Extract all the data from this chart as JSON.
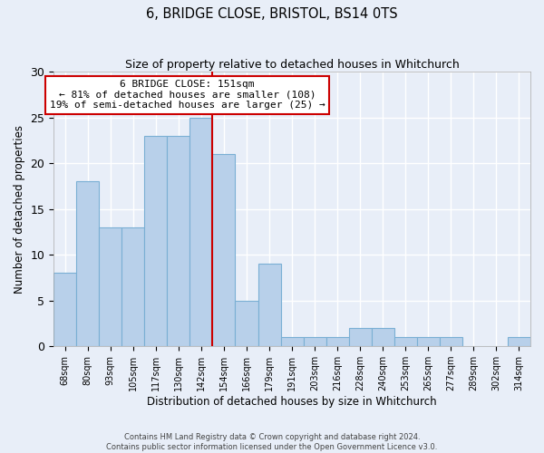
{
  "title": "6, BRIDGE CLOSE, BRISTOL, BS14 0TS",
  "subtitle": "Size of property relative to detached houses in Whitchurch",
  "xlabel": "Distribution of detached houses by size in Whitchurch",
  "ylabel": "Number of detached properties",
  "categories": [
    "68sqm",
    "80sqm",
    "93sqm",
    "105sqm",
    "117sqm",
    "130sqm",
    "142sqm",
    "154sqm",
    "166sqm",
    "179sqm",
    "191sqm",
    "203sqm",
    "216sqm",
    "228sqm",
    "240sqm",
    "253sqm",
    "265sqm",
    "277sqm",
    "289sqm",
    "302sqm",
    "314sqm"
  ],
  "values": [
    8,
    18,
    13,
    13,
    23,
    23,
    25,
    21,
    5,
    9,
    1,
    1,
    1,
    2,
    2,
    1,
    1,
    1,
    0,
    0,
    1
  ],
  "bar_color": "#b8d0ea",
  "bar_edge_color": "#7aafd4",
  "vline_color": "#cc0000",
  "annotation_text": "6 BRIDGE CLOSE: 151sqm\n← 81% of detached houses are smaller (108)\n19% of semi-detached houses are larger (25) →",
  "annotation_box_color": "#ffffff",
  "annotation_box_edge_color": "#cc0000",
  "ylim": [
    0,
    30
  ],
  "yticks": [
    0,
    5,
    10,
    15,
    20,
    25,
    30
  ],
  "footer1": "Contains HM Land Registry data © Crown copyright and database right 2024.",
  "footer2": "Contains public sector information licensed under the Open Government Licence v3.0.",
  "bg_color": "#e8eef8",
  "grid_color": "#ffffff"
}
